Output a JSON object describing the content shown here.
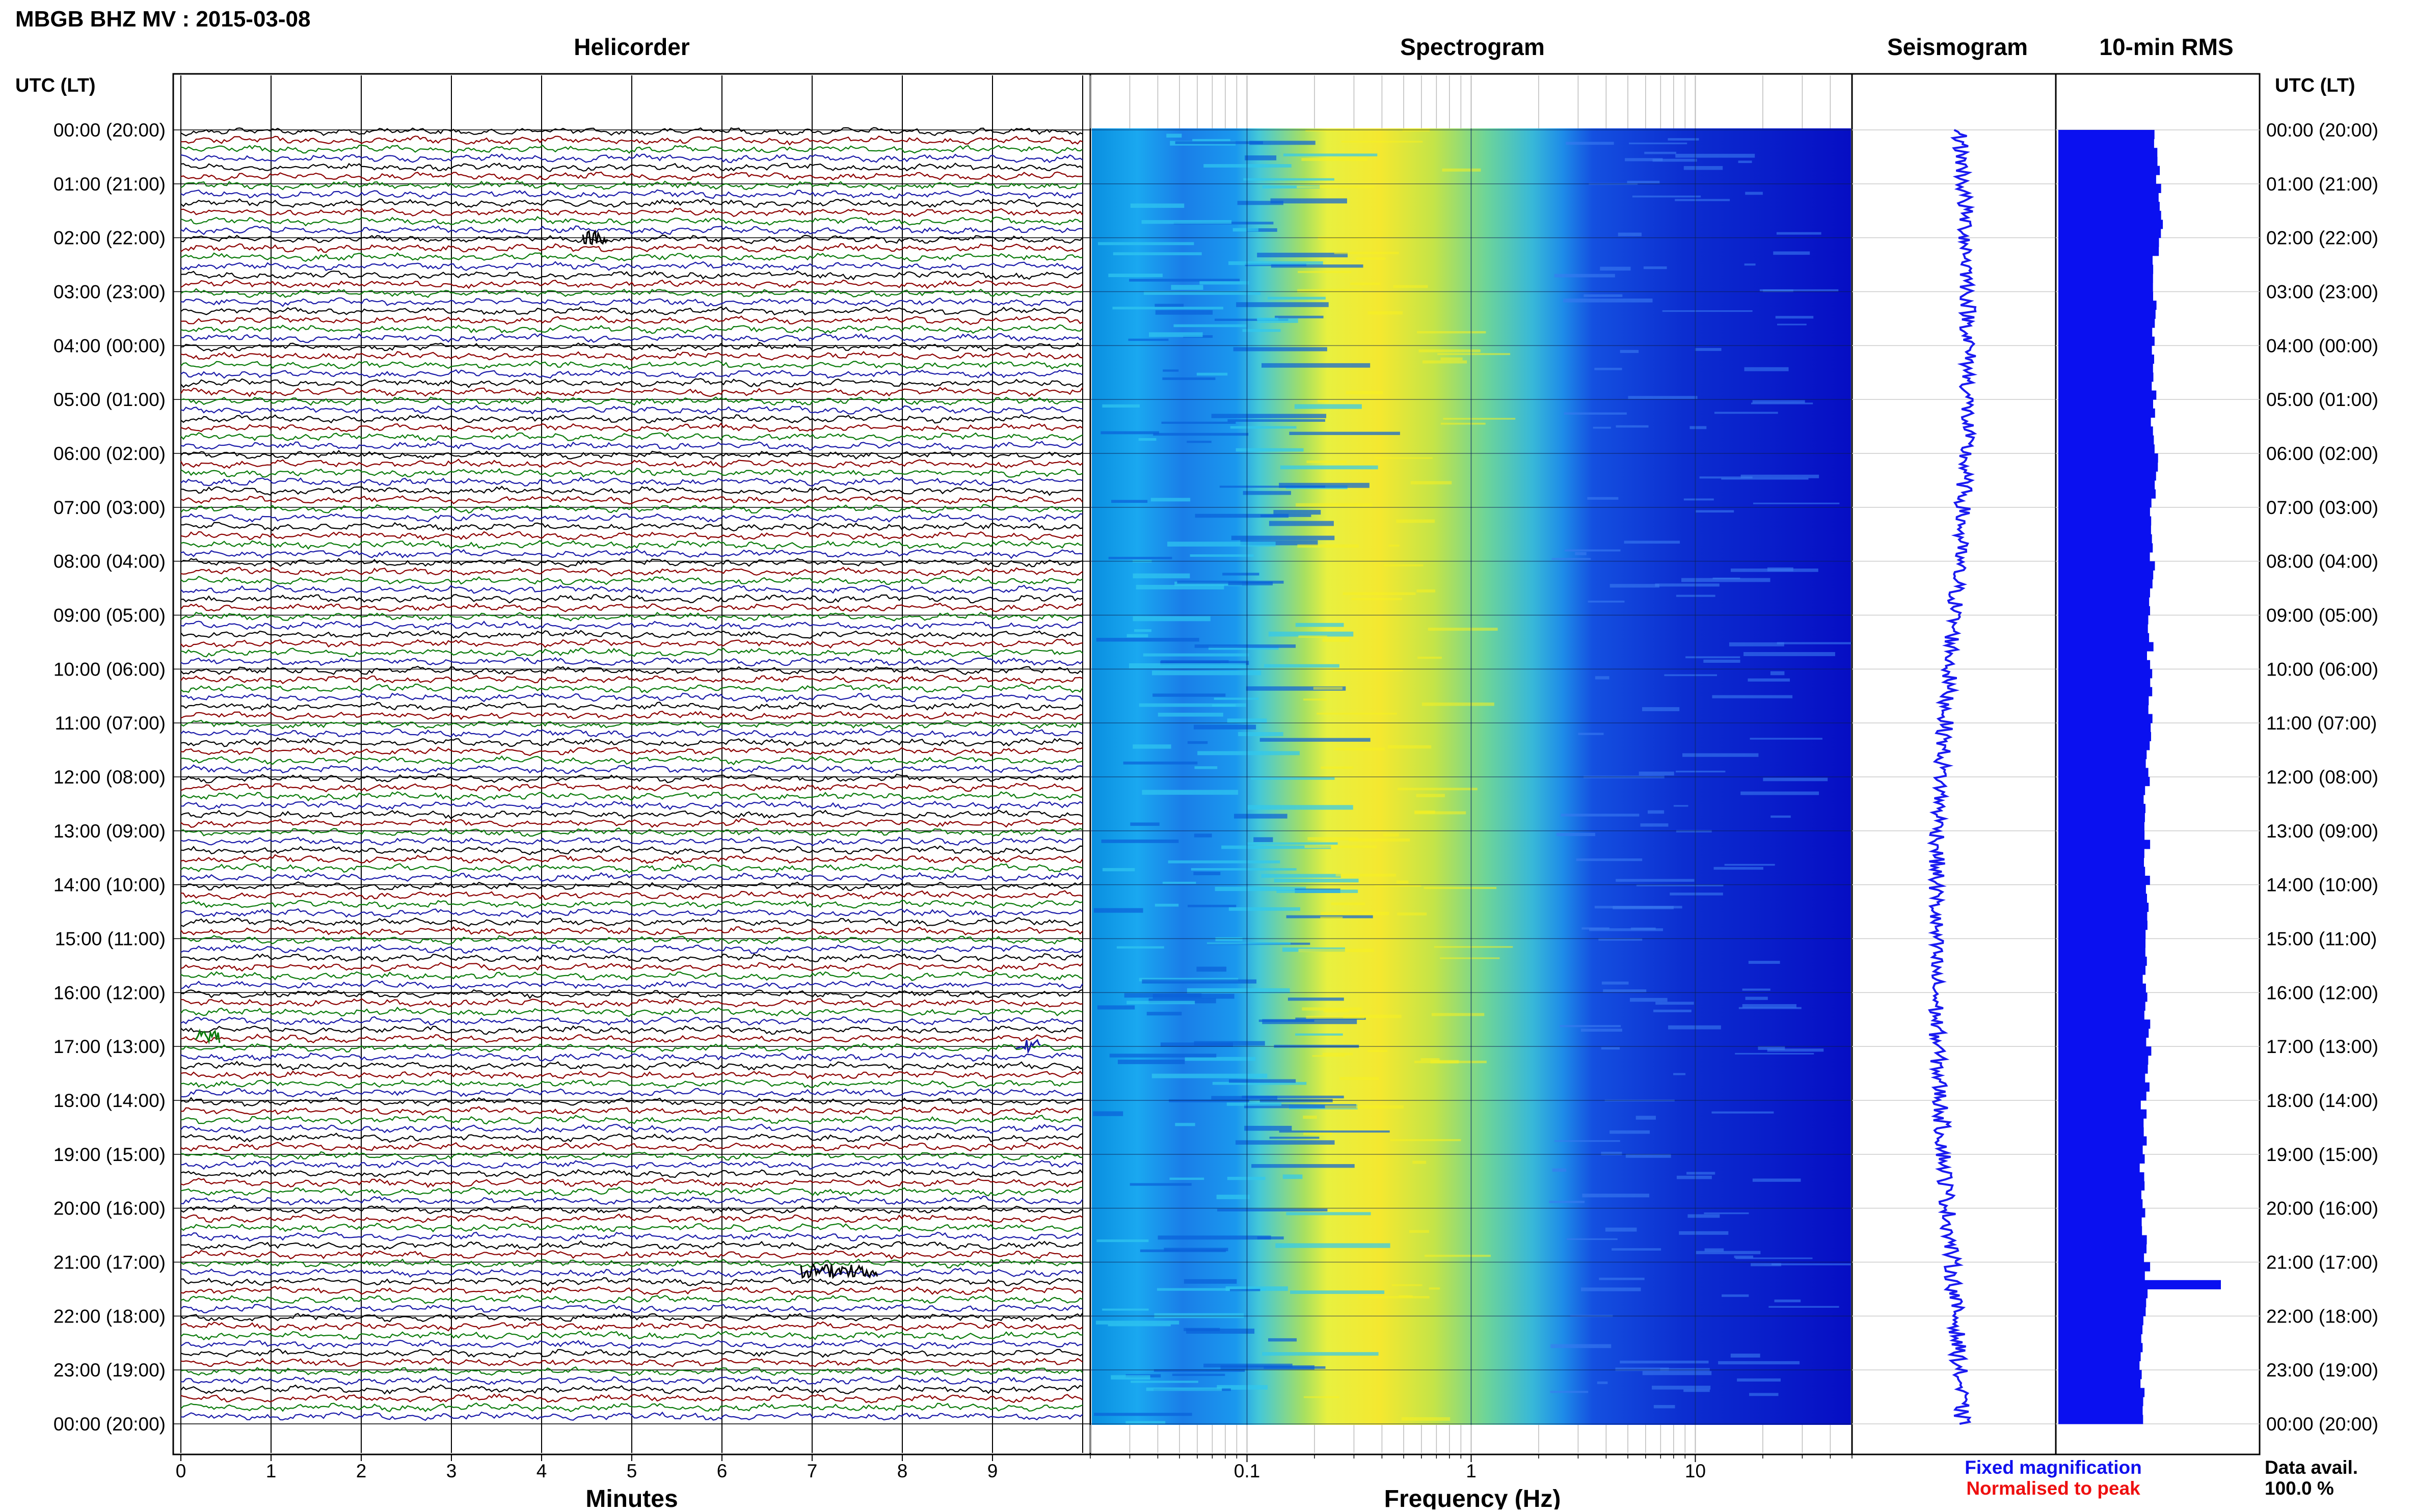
{
  "header": {
    "station_title": "MBGB BHZ MV : 2015-03-08"
  },
  "panels": {
    "helicorder": "Helicorder",
    "spectrogram": "Spectrogram",
    "seismogram": "Seismogram",
    "rms": "10-min RMS"
  },
  "axes": {
    "utc_header_left": "UTC (LT)",
    "utc_header_right": "UTC (LT)",
    "time_labels": [
      "00:00 (20:00)",
      "01:00 (21:00)",
      "02:00 (22:00)",
      "03:00 (23:00)",
      "04:00 (00:00)",
      "05:00 (01:00)",
      "06:00 (02:00)",
      "07:00 (03:00)",
      "08:00 (04:00)",
      "09:00 (05:00)",
      "10:00 (06:00)",
      "11:00 (07:00)",
      "12:00 (08:00)",
      "13:00 (09:00)",
      "14:00 (10:00)",
      "15:00 (11:00)",
      "16:00 (12:00)",
      "17:00 (13:00)",
      "18:00 (14:00)",
      "19:00 (15:00)",
      "20:00 (16:00)",
      "21:00 (17:00)",
      "22:00 (18:00)",
      "23:00 (19:00)",
      "00:00 (20:00)"
    ],
    "helicorder_xlabel": "Minutes",
    "helicorder_ticks": [
      "0",
      "1",
      "2",
      "3",
      "4",
      "5",
      "6",
      "7",
      "8",
      "9"
    ],
    "spectrogram_xlabel": "Frequency (Hz)",
    "spectrogram_ticks": [
      "0.1",
      "1",
      "10"
    ]
  },
  "legend": {
    "fixed": "Fixed magnification",
    "normalised": "Normalised to peak",
    "fixed_color": "#1010ee",
    "normalised_color": "#ee1010"
  },
  "availability": {
    "label": "Data avail.",
    "value": "100.0 %"
  },
  "colors": {
    "trace_cycle": [
      "#000000",
      "#8b0000",
      "#0a7a0a",
      "#1a1aa8"
    ],
    "bar_blue": "#0a10f0"
  },
  "chart_data": [
    {
      "type": "line",
      "name": "helicorder",
      "xlabel": "Minutes",
      "xlim": [
        0,
        10
      ],
      "rows_per_hour": 6,
      "hours": 24,
      "events": [
        {
          "time_utc": "02:00",
          "minute": 4.6
        },
        {
          "time_utc": "16:50",
          "minute": 0.3
        },
        {
          "time_utc": "17:00",
          "minute": 9.4
        },
        {
          "time_utc": "21:10",
          "minute": 7.3
        }
      ]
    },
    {
      "type": "heatmap",
      "name": "spectrogram",
      "xlabel": "Frequency (Hz)",
      "xscale": "log",
      "xlim": [
        0.02,
        50
      ],
      "ylim_hours": [
        0,
        24
      ]
    },
    {
      "type": "line",
      "name": "seismogram",
      "ylim_hours": [
        0,
        24
      ]
    },
    {
      "type": "bar",
      "name": "10-min RMS",
      "orientation": "horizontal",
      "ylim_hours": [
        0,
        24
      ],
      "hourly_values": [
        0.88,
        0.91,
        0.87,
        0.85,
        0.86,
        0.85,
        0.86,
        0.83,
        0.84,
        0.82,
        0.81,
        0.8,
        0.79,
        0.79,
        0.78,
        0.77,
        0.79,
        0.8,
        0.76,
        0.75,
        0.77,
        0.79,
        0.74,
        0.75
      ]
    }
  ]
}
